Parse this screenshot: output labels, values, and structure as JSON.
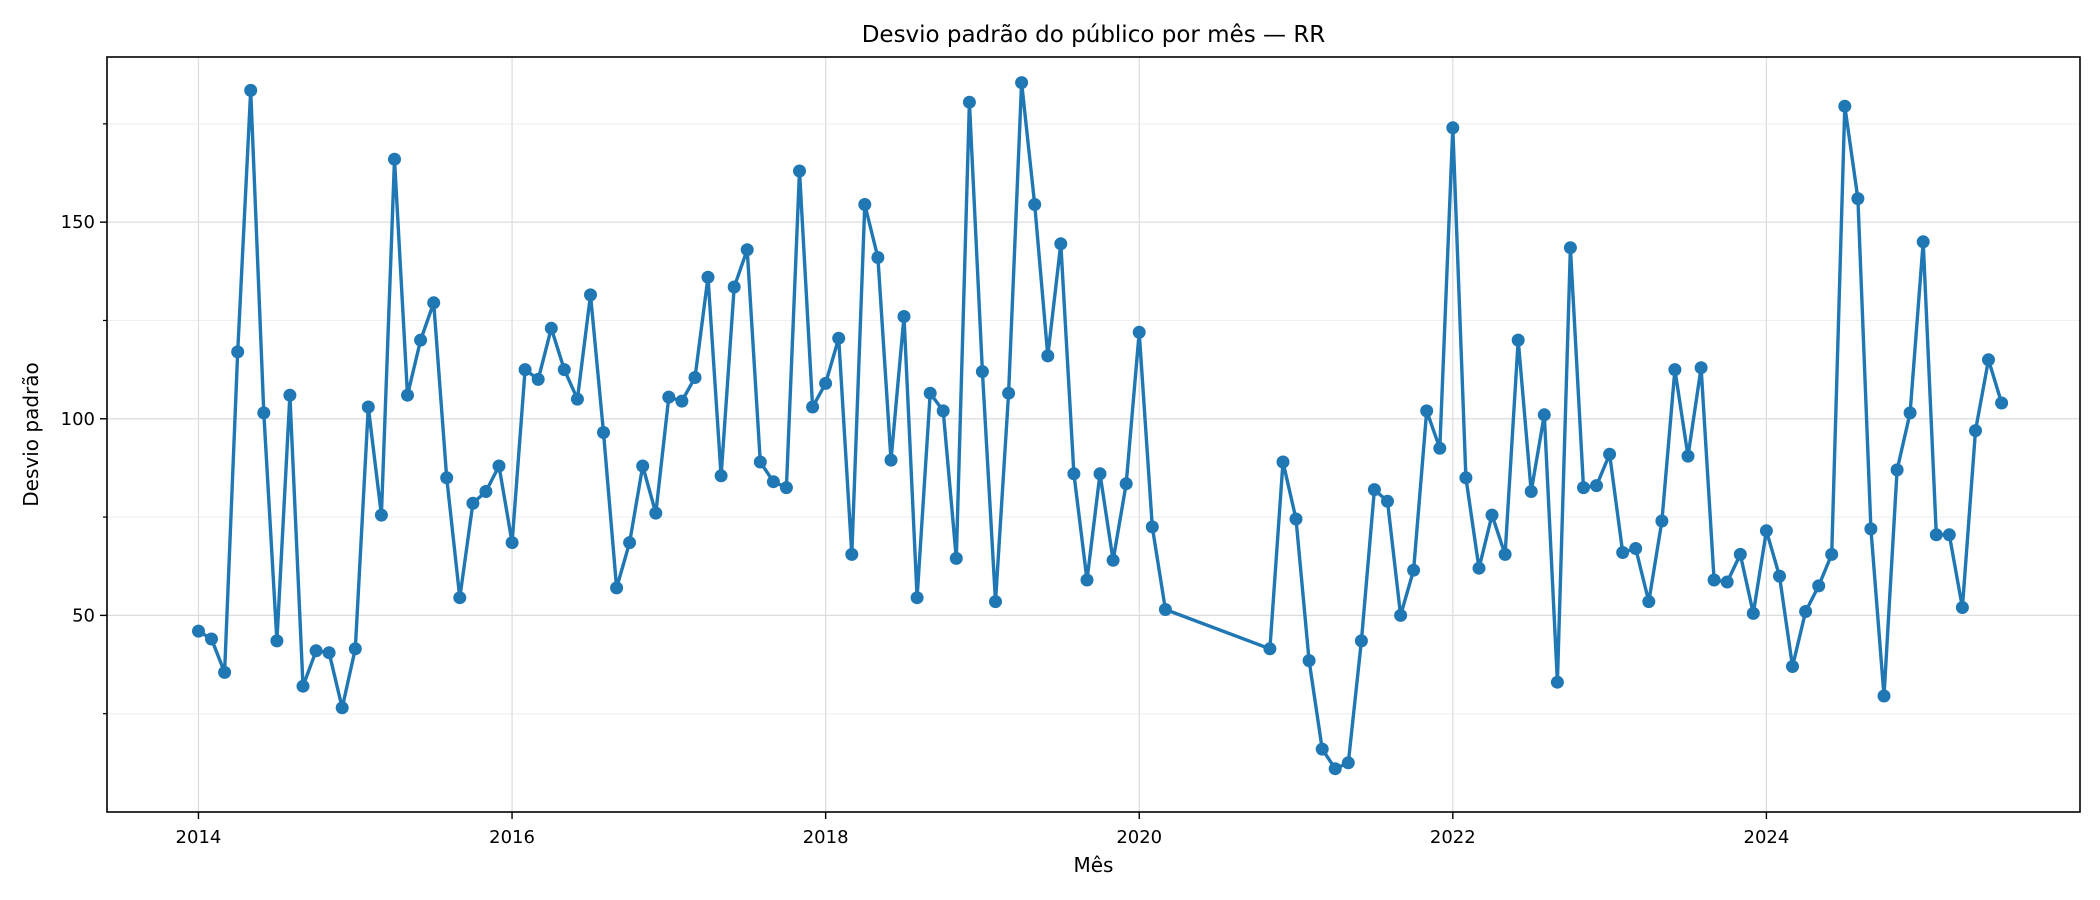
{
  "chart_data": {
    "type": "line",
    "title": "Desvio padrão do público por mês — RR",
    "xlabel": "Mês",
    "ylabel": "Desvio padrão",
    "xlim": [
      "2013-06",
      "2026-01"
    ],
    "ylim": [
      0,
      192
    ],
    "x_ticks": [
      2014,
      2016,
      2018,
      2020,
      2022,
      2024
    ],
    "y_ticks": [
      50,
      100,
      150
    ],
    "y_minor_ticks": [
      25,
      75,
      125,
      175
    ],
    "grid": true,
    "color": "#1f77b4",
    "series": [
      {
        "points": [
          [
            "2014-01",
            46
          ],
          [
            "2014-02",
            44
          ],
          [
            "2014-03",
            35.5
          ],
          [
            "2014-04",
            117
          ],
          [
            "2014-05",
            183.5
          ],
          [
            "2014-06",
            101.5
          ],
          [
            "2014-07",
            43.5
          ],
          [
            "2014-08",
            106
          ],
          [
            "2014-09",
            32
          ],
          [
            "2014-10",
            41
          ],
          [
            "2014-11",
            40.5
          ],
          [
            "2014-12",
            26.5
          ],
          [
            "2015-01",
            41.5
          ],
          [
            "2015-02",
            103
          ],
          [
            "2015-03",
            75.5
          ],
          [
            "2015-04",
            166
          ],
          [
            "2015-05",
            106
          ],
          [
            "2015-06",
            120
          ],
          [
            "2015-07",
            129.5
          ],
          [
            "2015-08",
            85
          ],
          [
            "2015-09",
            54.5
          ],
          [
            "2015-10",
            78.5
          ],
          [
            "2015-11",
            81.5
          ],
          [
            "2015-12",
            88
          ],
          [
            "2016-01",
            68.5
          ],
          [
            "2016-02",
            112.5
          ],
          [
            "2016-03",
            110
          ],
          [
            "2016-04",
            123
          ],
          [
            "2016-05",
            112.5
          ],
          [
            "2016-06",
            105
          ],
          [
            "2016-07",
            131.5
          ],
          [
            "2016-08",
            96.5
          ],
          [
            "2016-09",
            57
          ],
          [
            "2016-10",
            68.5
          ],
          [
            "2016-11",
            88
          ],
          [
            "2016-12",
            76
          ],
          [
            "2017-01",
            105.5
          ],
          [
            "2017-02",
            104.5
          ],
          [
            "2017-03",
            110.5
          ],
          [
            "2017-04",
            136
          ],
          [
            "2017-05",
            85.5
          ],
          [
            "2017-06",
            133.5
          ],
          [
            "2017-07",
            143
          ],
          [
            "2017-08",
            89
          ],
          [
            "2017-09",
            84
          ],
          [
            "2017-10",
            82.5
          ],
          [
            "2017-11",
            163
          ],
          [
            "2017-12",
            103
          ],
          [
            "2018-01",
            109
          ],
          [
            "2018-02",
            120.5
          ],
          [
            "2018-03",
            65.5
          ],
          [
            "2018-04",
            154.5
          ],
          [
            "2018-05",
            141
          ],
          [
            "2018-06",
            89.5
          ],
          [
            "2018-07",
            126
          ],
          [
            "2018-08",
            54.5
          ],
          [
            "2018-09",
            106.5
          ],
          [
            "2018-10",
            102
          ],
          [
            "2018-11",
            64.5
          ],
          [
            "2018-12",
            180.5
          ],
          [
            "2019-01",
            112
          ],
          [
            "2019-02",
            53.5
          ],
          [
            "2019-03",
            106.5
          ],
          [
            "2019-04",
            185.5
          ],
          [
            "2019-05",
            154.5
          ],
          [
            "2019-06",
            116
          ],
          [
            "2019-07",
            144.5
          ],
          [
            "2019-08",
            86
          ],
          [
            "2019-09",
            59
          ],
          [
            "2019-10",
            86
          ],
          [
            "2019-11",
            64
          ],
          [
            "2019-12",
            83.5
          ],
          [
            "2020-01",
            122
          ],
          [
            "2020-02",
            72.5
          ],
          [
            "2020-03",
            51.5
          ],
          [
            "2020-11",
            41.5
          ],
          [
            "2020-12",
            89
          ],
          [
            "2021-01",
            74.5
          ],
          [
            "2021-02",
            38.5
          ],
          [
            "2021-03",
            16
          ],
          [
            "2021-04",
            11
          ],
          [
            "2021-05",
            12.5
          ],
          [
            "2021-06",
            43.5
          ],
          [
            "2021-07",
            82
          ],
          [
            "2021-08",
            79
          ],
          [
            "2021-09",
            50
          ],
          [
            "2021-10",
            61.5
          ],
          [
            "2021-11",
            102
          ],
          [
            "2021-12",
            92.5
          ],
          [
            "2022-01",
            174
          ],
          [
            "2022-02",
            85
          ],
          [
            "2022-03",
            62
          ],
          [
            "2022-04",
            75.5
          ],
          [
            "2022-05",
            65.5
          ],
          [
            "2022-06",
            120
          ],
          [
            "2022-07",
            81.5
          ],
          [
            "2022-08",
            101
          ],
          [
            "2022-09",
            33
          ],
          [
            "2022-10",
            143.5
          ],
          [
            "2022-11",
            82.5
          ],
          [
            "2022-12",
            83
          ],
          [
            "2023-01",
            91
          ],
          [
            "2023-02",
            66
          ],
          [
            "2023-03",
            67
          ],
          [
            "2023-04",
            53.5
          ],
          [
            "2023-05",
            74
          ],
          [
            "2023-06",
            112.5
          ],
          [
            "2023-07",
            90.5
          ],
          [
            "2023-08",
            113
          ],
          [
            "2023-09",
            59
          ],
          [
            "2023-10",
            58.5
          ],
          [
            "2023-11",
            65.5
          ],
          [
            "2023-12",
            50.5
          ],
          [
            "2024-01",
            71.5
          ],
          [
            "2024-02",
            60
          ],
          [
            "2024-03",
            37
          ],
          [
            "2024-04",
            51
          ],
          [
            "2024-05",
            57.5
          ],
          [
            "2024-06",
            65.5
          ],
          [
            "2024-07",
            179.5
          ],
          [
            "2024-08",
            156
          ],
          [
            "2024-09",
            72
          ],
          [
            "2024-10",
            29.5
          ],
          [
            "2024-11",
            87
          ],
          [
            "2024-12",
            101.5
          ],
          [
            "2025-01",
            145
          ],
          [
            "2025-02",
            70.5
          ],
          [
            "2025-03",
            70.5
          ],
          [
            "2025-04",
            52
          ],
          [
            "2025-05",
            97
          ],
          [
            "2025-06",
            115
          ],
          [
            "2025-07",
            104
          ]
        ]
      }
    ]
  }
}
